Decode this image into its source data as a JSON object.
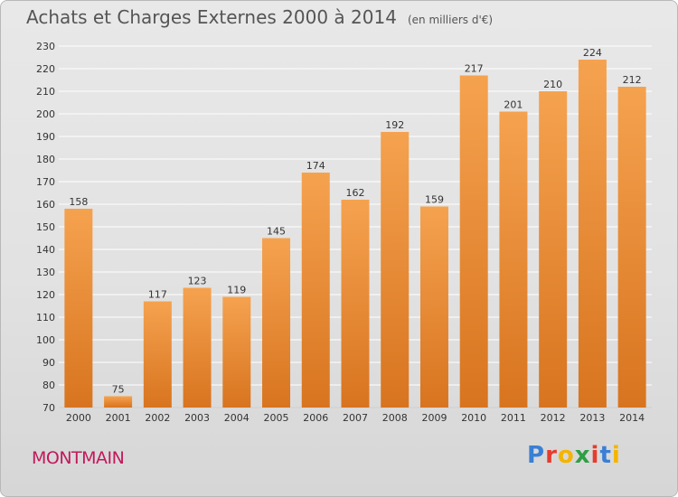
{
  "header": {
    "title": "Achats et Charges Externes 2000 à 2014",
    "subtitle": "(en milliers d'€)"
  },
  "footer": {
    "commune": "MONTMAIN",
    "logo_text": "Proxiti",
    "logo_letters": [
      {
        "char": "P",
        "color": "#3a7fd5"
      },
      {
        "char": "r",
        "color": "#e63b2e"
      },
      {
        "char": "o",
        "color": "#f4b400"
      },
      {
        "char": "x",
        "color": "#2f9e44"
      },
      {
        "char": "i",
        "color": "#e63b2e"
      },
      {
        "char": "t",
        "color": "#3a7fd5"
      },
      {
        "char": "i",
        "color": "#f4b400"
      }
    ]
  },
  "colors": {
    "bar_light": "#f5a24f",
    "bar_dark": "#d8741f",
    "grid": "#ffffff",
    "axis_text": "#333333",
    "title": "#555555",
    "commune": "#c2185b"
  },
  "chart_data": {
    "type": "bar",
    "categories": [
      "2000",
      "2001",
      "2002",
      "2003",
      "2004",
      "2005",
      "2006",
      "2007",
      "2008",
      "2009",
      "2010",
      "2011",
      "2012",
      "2013",
      "2014"
    ],
    "values": [
      158,
      75,
      117,
      123,
      119,
      145,
      174,
      162,
      192,
      159,
      217,
      201,
      210,
      224,
      212
    ],
    "ylim": [
      70,
      230
    ],
    "yticks": [
      70,
      80,
      90,
      100,
      110,
      120,
      130,
      140,
      150,
      160,
      170,
      180,
      190,
      200,
      210,
      220,
      230
    ],
    "xlabel": "",
    "ylabel": "",
    "grid": true,
    "data_labels": true
  }
}
